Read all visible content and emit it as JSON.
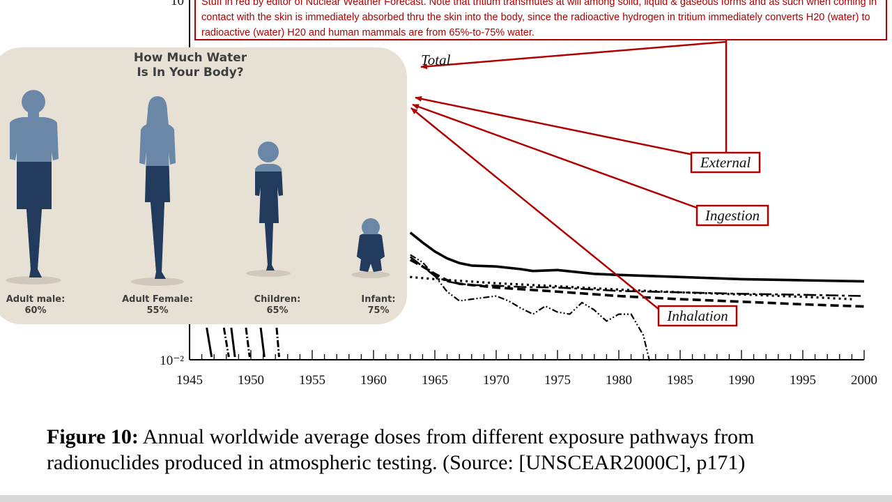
{
  "note": {
    "text": "Stuff in red by editor of Nuclear Weather Forecast. Note that tritium transmutes at will among solid, liquid & gaseous forms and as such when coming in contact with the skin is immediately absorbed thru the skin into the body, since the radioactive hydrogen in tritium immediately converts H20 (water) to radioactive (water) H20 and human mammals are from 65%-to-75% water.",
    "color": "#b00000"
  },
  "water_panel": {
    "title_line1": "How Much Water",
    "title_line2": "Is In Your Body?",
    "figures": [
      {
        "label": "Adult male:",
        "percent": "60%",
        "fraction": 0.6
      },
      {
        "label": "Adult Female:",
        "percent": "55%",
        "fraction": 0.55
      },
      {
        "label": "Children:",
        "percent": "65%",
        "fraction": 0.65
      },
      {
        "label": "Infant:",
        "percent": "75%",
        "fraction": 0.75
      }
    ],
    "colors": {
      "background": "#e7e1d5",
      "body_light": "#6b87a8",
      "body_dark": "#223a5c"
    }
  },
  "chart_data": {
    "type": "line",
    "yscale": "log",
    "x_ticks": [
      "1945",
      "1950",
      "1955",
      "1960",
      "1965",
      "1970",
      "1975",
      "1980",
      "1985",
      "1990",
      "1995",
      "2000"
    ],
    "xlim": [
      1945,
      2000
    ],
    "y_tick_labels": [
      "10",
      "10⁻²"
    ],
    "series": [
      {
        "name": "Total",
        "x": [
          1963,
          1964,
          1965,
          1966,
          1967,
          1968,
          1970,
          1972,
          1973,
          1975,
          1978,
          1980,
          1985,
          1990,
          1995,
          2000
        ],
        "y": [
          0.115,
          0.095,
          0.08,
          0.07,
          0.064,
          0.061,
          0.06,
          0.057,
          0.055,
          0.056,
          0.052,
          0.051,
          0.049,
          0.047,
          0.046,
          0.045
        ]
      },
      {
        "name": "External",
        "x": [
          1963,
          1964,
          1965,
          1966,
          1967,
          1968,
          1970,
          1972,
          1975,
          1978,
          1980,
          1985,
          1990,
          1995,
          2000
        ],
        "y": [
          0.072,
          0.06,
          0.05,
          0.045,
          0.043,
          0.042,
          0.0415,
          0.0405,
          0.04,
          0.0385,
          0.0375,
          0.0365,
          0.0355,
          0.0348,
          0.034
        ]
      },
      {
        "name": "Ingestion",
        "x": [
          1963,
          1964,
          1965,
          1966,
          1967,
          1970,
          1975,
          1980,
          1985,
          1990,
          1995,
          2000
        ],
        "y": [
          0.068,
          0.06,
          0.052,
          0.046,
          0.043,
          0.04,
          0.037,
          0.034,
          0.032,
          0.0305,
          0.029,
          0.0278
        ]
      },
      {
        "name": "Inhalation",
        "x": [
          1963,
          1964,
          1965,
          1966,
          1967,
          1968,
          1969,
          1970,
          1971,
          1972,
          1973,
          1974,
          1975,
          1976,
          1977,
          1978,
          1979,
          1980,
          1981,
          1982,
          1982.5
        ],
        "y": [
          0.075,
          0.065,
          0.05,
          0.037,
          0.031,
          0.032,
          0.033,
          0.034,
          0.031,
          0.027,
          0.024,
          0.028,
          0.025,
          0.024,
          0.03,
          0.026,
          0.021,
          0.024,
          0.024,
          0.016,
          0.0098
        ]
      },
      {
        "x": [
          1958,
          1963,
          1965,
          1970,
          1975,
          1980,
          1985,
          1990,
          1995,
          1999
        ],
        "y": [
          0.055,
          0.049,
          0.047,
          0.0435,
          0.041,
          0.0385,
          0.0365,
          0.035,
          0.0335,
          0.032
        ]
      }
    ]
  },
  "caption": {
    "label": "Figure 10:",
    "text": "  Annual worldwide average doses from different exposure pathways from radionuclides produced in atmospheric testing. (Source: [UNSCEAR2000C], p171)"
  }
}
